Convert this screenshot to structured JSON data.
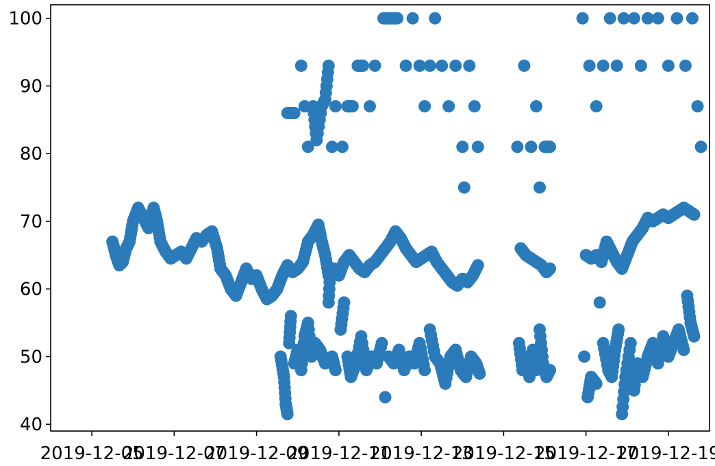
{
  "chart_data": {
    "type": "scatter",
    "title": "",
    "xlabel": "",
    "ylabel": "",
    "grid": false,
    "legend": "none",
    "color": "#2b7bba",
    "x_axis": {
      "kind": "date",
      "range": [
        "2019-12-04",
        "2019-12-20"
      ],
      "ticks": [
        "2019-12-05",
        "2019-12-07",
        "2019-12-09",
        "2019-12-11",
        "2019-12-13",
        "2019-12-15",
        "2019-12-17",
        "2019-12-19"
      ]
    },
    "y_axis": {
      "range": [
        39,
        102
      ],
      "ticks": [
        40,
        50,
        60,
        70,
        80,
        90,
        100
      ]
    },
    "series": [
      {
        "points": [
          [
            "2019-12-05T12:00",
            67
          ],
          [
            "2019-12-05T14:00",
            65
          ],
          [
            "2019-12-05T16:00",
            63.5
          ],
          [
            "2019-12-05T18:00",
            64
          ],
          [
            "2019-12-05T20:00",
            66
          ],
          [
            "2019-12-05T22:00",
            67
          ],
          [
            "2019-12-06T00:00",
            70
          ],
          [
            "2019-12-06T03:00",
            72
          ],
          [
            "2019-12-06T06:00",
            70.5
          ],
          [
            "2019-12-06T09:00",
            69
          ],
          [
            "2019-12-06T12:00",
            72
          ],
          [
            "2019-12-06T14:00",
            70
          ],
          [
            "2019-12-06T16:00",
            67
          ],
          [
            "2019-12-06T19:00",
            65.5
          ],
          [
            "2019-12-06T22:00",
            64.5
          ],
          [
            "2019-12-07T01:00",
            65
          ],
          [
            "2019-12-07T04:00",
            65.5
          ],
          [
            "2019-12-07T07:00",
            64.5
          ],
          [
            "2019-12-07T10:00",
            66
          ],
          [
            "2019-12-07T13:00",
            67.5
          ],
          [
            "2019-12-07T16:00",
            67
          ],
          [
            "2019-12-07T19:00",
            68
          ],
          [
            "2019-12-07T22:00",
            68.5
          ],
          [
            "2019-12-08T01:00",
            66
          ],
          [
            "2019-12-08T03:00",
            63
          ],
          [
            "2019-12-08T06:00",
            62
          ],
          [
            "2019-12-08T09:00",
            60
          ],
          [
            "2019-12-08T12:00",
            59
          ],
          [
            "2019-12-08T15:00",
            61
          ],
          [
            "2019-12-08T18:00",
            63
          ],
          [
            "2019-12-08T21:00",
            61.5
          ],
          [
            "2019-12-09T00:00",
            62
          ],
          [
            "2019-12-09T03:00",
            60
          ],
          [
            "2019-12-09T06:00",
            58.5
          ],
          [
            "2019-12-09T09:00",
            59
          ],
          [
            "2019-12-09T12:00",
            60
          ],
          [
            "2019-12-09T15:00",
            62
          ],
          [
            "2019-12-09T18:00",
            63.5
          ],
          [
            "2019-12-09T21:00",
            62.5
          ],
          [
            "2019-12-10T00:00",
            63
          ],
          [
            "2019-12-10T03:00",
            64
          ],
          [
            "2019-12-10T06:00",
            67
          ],
          [
            "2019-12-10T09:00",
            68
          ],
          [
            "2019-12-10T12:00",
            69.5
          ],
          [
            "2019-12-10T14:00",
            67
          ],
          [
            "2019-12-10T16:00",
            65
          ],
          [
            "2019-12-10T18:00",
            62
          ],
          [
            "2019-12-10T21:00",
            63
          ],
          [
            "2019-12-11T00:00",
            62
          ],
          [
            "2019-12-11T03:00",
            64
          ],
          [
            "2019-12-11T06:00",
            65
          ],
          [
            "2019-12-11T09:00",
            64
          ],
          [
            "2019-12-11T12:00",
            63
          ],
          [
            "2019-12-11T15:00",
            62.5
          ],
          [
            "2019-12-11T18:00",
            63.5
          ],
          [
            "2019-12-11T21:00",
            64
          ],
          [
            "2019-12-12T00:00",
            65
          ],
          [
            "2019-12-12T03:00",
            66
          ],
          [
            "2019-12-12T06:00",
            67
          ],
          [
            "2019-12-12T09:00",
            68.5
          ],
          [
            "2019-12-12T12:00",
            67.5
          ],
          [
            "2019-12-12T15:00",
            66
          ],
          [
            "2019-12-12T18:00",
            65
          ],
          [
            "2019-12-12T21:00",
            64
          ],
          [
            "2019-12-13T00:00",
            64.5
          ],
          [
            "2019-12-13T03:00",
            65
          ],
          [
            "2019-12-13T06:00",
            65.5
          ],
          [
            "2019-12-13T09:00",
            64
          ],
          [
            "2019-12-13T12:00",
            63
          ],
          [
            "2019-12-13T15:00",
            62
          ],
          [
            "2019-12-13T18:00",
            61
          ],
          [
            "2019-12-13T21:00",
            60.5
          ],
          [
            "2019-12-14T00:00",
            61.5
          ],
          [
            "2019-12-14T03:00",
            61
          ],
          [
            "2019-12-14T06:00",
            62
          ],
          [
            "2019-12-14T09:00",
            63.5
          ],
          [
            "2019-12-15T10:00",
            66
          ],
          [
            "2019-12-15T13:00",
            65
          ],
          [
            "2019-12-15T16:00",
            64.5
          ],
          [
            "2019-12-15T19:00",
            64
          ],
          [
            "2019-12-15T22:00",
            63.5
          ],
          [
            "2019-12-16T01:00",
            62.5
          ],
          [
            "2019-12-16T03:00",
            63
          ],
          [
            "2019-12-17T00:00",
            65
          ],
          [
            "2019-12-17T03:00",
            64.5
          ],
          [
            "2019-12-17T06:00",
            65
          ],
          [
            "2019-12-17T09:00",
            64
          ],
          [
            "2019-12-17T12:00",
            67
          ],
          [
            "2019-12-17T15:00",
            65.5
          ],
          [
            "2019-12-17T18:00",
            64
          ],
          [
            "2019-12-17T21:00",
            63
          ],
          [
            "2019-12-18T00:00",
            65
          ],
          [
            "2019-12-18T03:00",
            67
          ],
          [
            "2019-12-18T06:00",
            68
          ],
          [
            "2019-12-18T09:00",
            69
          ],
          [
            "2019-12-18T12:00",
            70.5
          ],
          [
            "2019-12-18T15:00",
            70
          ],
          [
            "2019-12-18T18:00",
            70.5
          ],
          [
            "2019-12-18T21:00",
            71
          ],
          [
            "2019-12-19T00:00",
            70.5
          ],
          [
            "2019-12-19T03:00",
            71
          ],
          [
            "2019-12-19T06:00",
            71.5
          ],
          [
            "2019-12-19T09:00",
            72
          ],
          [
            "2019-12-19T12:00",
            71.5
          ],
          [
            "2019-12-19T15:00",
            71
          ],
          [
            "2019-12-09T14:00",
            50
          ],
          [
            "2019-12-09T16:00",
            47
          ],
          [
            "2019-12-09T17:00",
            43
          ],
          [
            "2019-12-09T18:00",
            41.5
          ],
          [
            "2019-12-09T19:00",
            52
          ],
          [
            "2019-12-09T20:00",
            56
          ],
          [
            "2019-12-09T22:00",
            49
          ],
          [
            "2019-12-10T00:00",
            51
          ],
          [
            "2019-12-10T02:00",
            48
          ],
          [
            "2019-12-10T04:00",
            53
          ],
          [
            "2019-12-10T06:00",
            55
          ],
          [
            "2019-12-10T08:00",
            50
          ],
          [
            "2019-12-10T10:00",
            52
          ],
          [
            "2019-12-10T13:00",
            51
          ],
          [
            "2019-12-10T16:00",
            49
          ],
          [
            "2019-12-10T18:00",
            58
          ],
          [
            "2019-12-10T19:00",
            63
          ],
          [
            "2019-12-10T20:00",
            50
          ],
          [
            "2019-12-10T22:00",
            48
          ],
          [
            "2019-12-11T01:00",
            54
          ],
          [
            "2019-12-11T03:00",
            58
          ],
          [
            "2019-12-11T05:00",
            50
          ],
          [
            "2019-12-11T07:00",
            47
          ],
          [
            "2019-12-11T10:00",
            49
          ],
          [
            "2019-12-11T13:00",
            53
          ],
          [
            "2019-12-11T16:00",
            48
          ],
          [
            "2019-12-11T19:00",
            50
          ],
          [
            "2019-12-11T22:00",
            49
          ],
          [
            "2019-12-12T01:00",
            52
          ],
          [
            "2019-12-12T03:00",
            44
          ],
          [
            "2019-12-12T05:00",
            50
          ],
          [
            "2019-12-12T08:00",
            49
          ],
          [
            "2019-12-12T11:00",
            51
          ],
          [
            "2019-12-12T14:00",
            48
          ],
          [
            "2019-12-12T17:00",
            50
          ],
          [
            "2019-12-12T20:00",
            49
          ],
          [
            "2019-12-12T23:00",
            52
          ],
          [
            "2019-12-13T02:00",
            48
          ],
          [
            "2019-12-13T05:00",
            54
          ],
          [
            "2019-12-13T08:00",
            50
          ],
          [
            "2019-12-13T11:00",
            49
          ],
          [
            "2019-12-13T14:00",
            46
          ],
          [
            "2019-12-13T17:00",
            50
          ],
          [
            "2019-12-13T20:00",
            51
          ],
          [
            "2019-12-13T23:00",
            48
          ],
          [
            "2019-12-14T02:00",
            47
          ],
          [
            "2019-12-14T05:00",
            50
          ],
          [
            "2019-12-14T08:00",
            49
          ],
          [
            "2019-12-14T10:00",
            47.5
          ],
          [
            "2019-12-15T09:00",
            52
          ],
          [
            "2019-12-15T11:00",
            48
          ],
          [
            "2019-12-15T13:00",
            50
          ],
          [
            "2019-12-15T15:00",
            47
          ],
          [
            "2019-12-15T17:00",
            51
          ],
          [
            "2019-12-15T19:00",
            48
          ],
          [
            "2019-12-15T21:00",
            54
          ],
          [
            "2019-12-15T23:00",
            49
          ],
          [
            "2019-12-16T01:00",
            47
          ],
          [
            "2019-12-16T03:00",
            48
          ],
          [
            "2019-12-16T23:00",
            50
          ],
          [
            "2019-12-17T01:00",
            44
          ],
          [
            "2019-12-17T03:00",
            47
          ],
          [
            "2019-12-17T06:00",
            46
          ],
          [
            "2019-12-17T08:00",
            58
          ],
          [
            "2019-12-17T10:00",
            52
          ],
          [
            "2019-12-17T13:00",
            48
          ],
          [
            "2019-12-17T15:00",
            47
          ],
          [
            "2019-12-17T17:00",
            51
          ],
          [
            "2019-12-17T19:00",
            54
          ],
          [
            "2019-12-17T21:00",
            41.5
          ],
          [
            "2019-12-17T23:00",
            47
          ],
          [
            "2019-12-18T02:00",
            52
          ],
          [
            "2019-12-18T04:00",
            45
          ],
          [
            "2019-12-18T06:00",
            49
          ],
          [
            "2019-12-18T09:00",
            47
          ],
          [
            "2019-12-18T12:00",
            50
          ],
          [
            "2019-12-18T15:00",
            52
          ],
          [
            "2019-12-18T18:00",
            49
          ],
          [
            "2019-12-18T21:00",
            53
          ],
          [
            "2019-12-19T00:00",
            50
          ],
          [
            "2019-12-19T03:00",
            52
          ],
          [
            "2019-12-19T06:00",
            54
          ],
          [
            "2019-12-19T09:00",
            51
          ],
          [
            "2019-12-19T11:00",
            59
          ],
          [
            "2019-12-19T13:00",
            55
          ],
          [
            "2019-12-19T15:00",
            53
          ],
          [
            "2019-12-09T18:00",
            86
          ],
          [
            "2019-12-09T22:00",
            86
          ],
          [
            "2019-12-10T02:00",
            93
          ],
          [
            "2019-12-10T04:00",
            87
          ],
          [
            "2019-12-10T06:00",
            81
          ],
          [
            "2019-12-10T09:00",
            87
          ],
          [
            "2019-12-10T11:00",
            82
          ],
          [
            "2019-12-10T14:00",
            87
          ],
          [
            "2019-12-10T16:00",
            88
          ],
          [
            "2019-12-10T18:00",
            93
          ],
          [
            "2019-12-10T20:00",
            81
          ],
          [
            "2019-12-10T22:00",
            87
          ],
          [
            "2019-12-11T02:00",
            81
          ],
          [
            "2019-12-11T05:00",
            87
          ],
          [
            "2019-12-11T08:00",
            87
          ],
          [
            "2019-12-11T11:00",
            93
          ],
          [
            "2019-12-11T14:00",
            93
          ],
          [
            "2019-12-11T18:00",
            87
          ],
          [
            "2019-12-11T21:00",
            93
          ],
          [
            "2019-12-12T02:00",
            100
          ],
          [
            "2019-12-12T06:00",
            100
          ],
          [
            "2019-12-12T10:00",
            100
          ],
          [
            "2019-12-12T15:00",
            93
          ],
          [
            "2019-12-12T19:00",
            100
          ],
          [
            "2019-12-12T23:00",
            93
          ],
          [
            "2019-12-13T02:00",
            87
          ],
          [
            "2019-12-13T05:00",
            93
          ],
          [
            "2019-12-13T08:00",
            100
          ],
          [
            "2019-12-13T12:00",
            93
          ],
          [
            "2019-12-13T16:00",
            87
          ],
          [
            "2019-12-13T20:00",
            93
          ],
          [
            "2019-12-14T00:00",
            81
          ],
          [
            "2019-12-14T01:00",
            75
          ],
          [
            "2019-12-14T04:00",
            93
          ],
          [
            "2019-12-14T07:00",
            87
          ],
          [
            "2019-12-14T09:00",
            81
          ],
          [
            "2019-12-15T08:00",
            81
          ],
          [
            "2019-12-15T12:00",
            93
          ],
          [
            "2019-12-15T16:00",
            81
          ],
          [
            "2019-12-15T19:00",
            87
          ],
          [
            "2019-12-15T21:00",
            75
          ],
          [
            "2019-12-16T00:00",
            81
          ],
          [
            "2019-12-16T03:00",
            81
          ],
          [
            "2019-12-16T22:00",
            100
          ],
          [
            "2019-12-17T02:00",
            93
          ],
          [
            "2019-12-17T06:00",
            87
          ],
          [
            "2019-12-17T10:00",
            93
          ],
          [
            "2019-12-17T14:00",
            100
          ],
          [
            "2019-12-17T18:00",
            93
          ],
          [
            "2019-12-17T22:00",
            100
          ],
          [
            "2019-12-18T04:00",
            100
          ],
          [
            "2019-12-18T08:00",
            93
          ],
          [
            "2019-12-18T12:00",
            100
          ],
          [
            "2019-12-18T18:00",
            100
          ],
          [
            "2019-12-19T00:00",
            93
          ],
          [
            "2019-12-19T05:00",
            100
          ],
          [
            "2019-12-19T10:00",
            93
          ],
          [
            "2019-12-19T14:00",
            100
          ],
          [
            "2019-12-19T17:00",
            87
          ],
          [
            "2019-12-19T19:00",
            81
          ]
        ]
      }
    ]
  }
}
